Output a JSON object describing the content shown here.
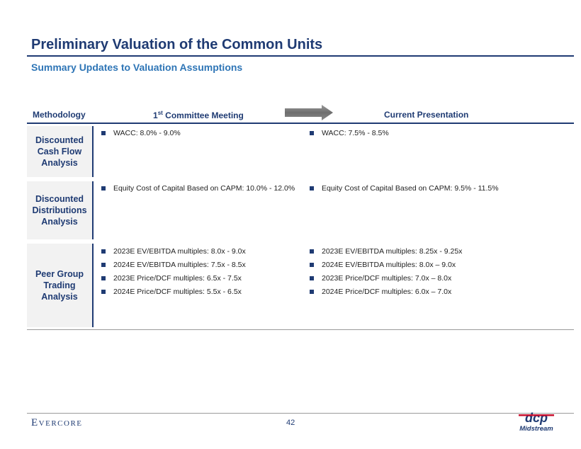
{
  "header": {
    "title": "Preliminary Valuation of the Common Units",
    "subtitle": "Summary Updates to Valuation Assumptions"
  },
  "table": {
    "columns": {
      "methodology": "Methodology",
      "first_main": "1",
      "first_sup": "st",
      "first_rest": " Committee Meeting",
      "current": "Current Presentation"
    },
    "rows": [
      {
        "label": [
          "Discounted",
          "Cash Flow",
          "Analysis"
        ],
        "first": [
          "WACC: 8.0% - 9.0%"
        ],
        "current": [
          "WACC: 7.5% - 8.5%"
        ]
      },
      {
        "label": [
          "Discounted",
          "Distributions",
          "Analysis"
        ],
        "first": [
          "Equity Cost of Capital Based on CAPM: 10.0% - 12.0%"
        ],
        "current": [
          "Equity Cost of Capital Based on CAPM: 9.5% - 11.5%"
        ]
      },
      {
        "label": [
          "Peer Group",
          "Trading",
          "Analysis"
        ],
        "first": [
          "2023E EV/EBITDA multiples: 8.0x - 9.0x",
          "2024E EV/EBITDA multiples: 7.5x - 8.5x",
          "2023E Price/DCF multiples: 6.5x - 7.5x",
          "2024E Price/DCF multiples: 5.5x - 6.5x"
        ],
        "current": [
          "2023E EV/EBITDA multiples: 8.25x - 9.25x",
          "2024E EV/EBITDA multiples: 8.0x – 9.0x",
          "2023E Price/DCF multiples: 7.0x – 8.0x",
          "2024E Price/DCF multiples: 6.0x – 7.0x"
        ]
      }
    ]
  },
  "footer": {
    "brand_first": "E",
    "brand_rest": "VERCORE",
    "page_number": "42",
    "logo_mark": "dcp",
    "logo_sub": "Midstream"
  },
  "colors": {
    "primary": "#1f3b73",
    "accent": "#2e75b6",
    "logo_red": "#c8102e"
  },
  "icons": [
    "right-arrow-icon",
    "square-bullet-icon"
  ]
}
